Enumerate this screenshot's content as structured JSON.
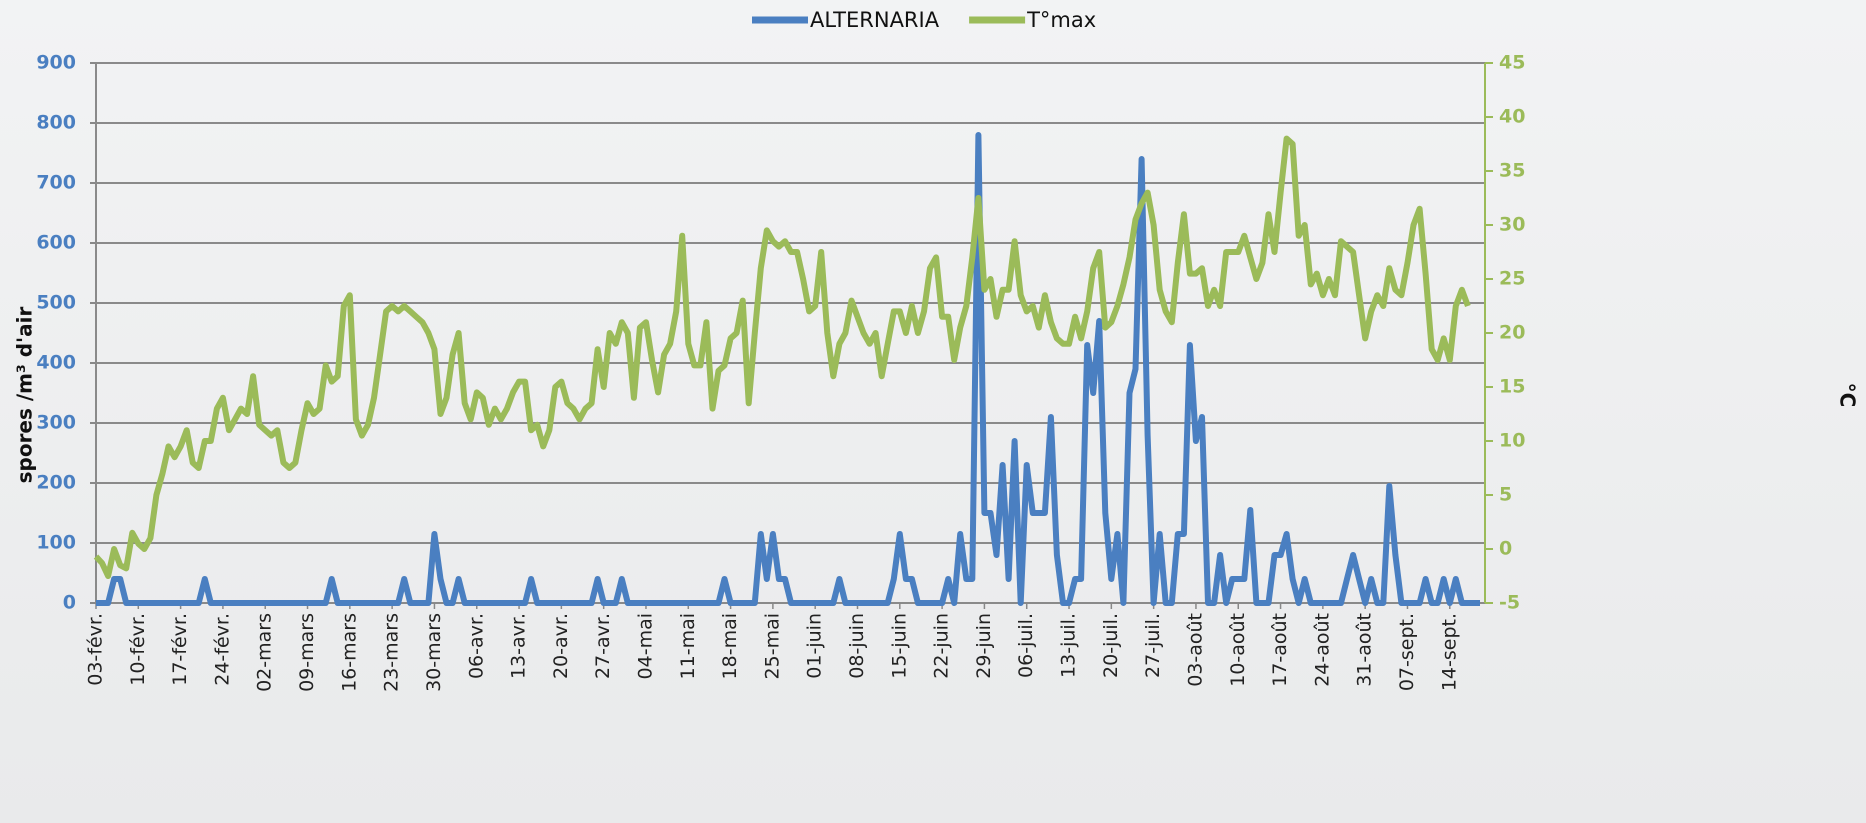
{
  "chart_data": {
    "type": "line",
    "y_label": "spores /m³ d'air",
    "y2_label": "°C",
    "categories": [
      "03-févr.",
      null,
      null,
      null,
      null,
      null,
      null,
      "10-févr.",
      null,
      null,
      null,
      null,
      null,
      null,
      "17-févr.",
      null,
      null,
      null,
      null,
      null,
      null,
      "24-févr.",
      null,
      null,
      null,
      null,
      null,
      null,
      "02-mars",
      null,
      null,
      null,
      null,
      null,
      null,
      "09-mars",
      null,
      null,
      null,
      null,
      null,
      null,
      "16-mars",
      null,
      null,
      null,
      null,
      null,
      null,
      "23-mars",
      null,
      null,
      null,
      null,
      null,
      null,
      "30-mars",
      null,
      null,
      null,
      null,
      null,
      null,
      "06-avr.",
      null,
      null,
      null,
      null,
      null,
      null,
      "13-avr.",
      null,
      null,
      null,
      null,
      null,
      null,
      "20-avr.",
      null,
      null,
      null,
      null,
      null,
      null,
      "27-avr.",
      null,
      null,
      null,
      null,
      null,
      null,
      "04-mai",
      null,
      null,
      null,
      null,
      null,
      null,
      "11-mai",
      null,
      null,
      null,
      null,
      null,
      null,
      "18-mai",
      null,
      null,
      null,
      null,
      null,
      null,
      "25-mai",
      null,
      null,
      null,
      null,
      null,
      null,
      "01-juin",
      null,
      null,
      null,
      null,
      null,
      null,
      "08-juin",
      null,
      null,
      null,
      null,
      null,
      null,
      "15-juin",
      null,
      null,
      null,
      null,
      null,
      null,
      "22-juin",
      null,
      null,
      null,
      null,
      null,
      null,
      "29-juin",
      null,
      null,
      null,
      null,
      null,
      null,
      "06-juil.",
      null,
      null,
      null,
      null,
      null,
      null,
      "13-juil.",
      null,
      null,
      null,
      null,
      null,
      null,
      "20-juil.",
      null,
      null,
      null,
      null,
      null,
      null,
      "27-juil.",
      null,
      null,
      null,
      null,
      null,
      null,
      "03-août",
      null,
      null,
      null,
      null,
      null,
      null,
      "10-août",
      null,
      null,
      null,
      null,
      null,
      null,
      "17-août",
      null,
      null,
      null,
      null,
      null,
      null,
      "24-août",
      null,
      null,
      null,
      null,
      null,
      null,
      "31-août",
      null,
      null,
      null,
      null,
      null,
      null,
      "07-sept.",
      null,
      null,
      null,
      null,
      null,
      null,
      "14-sept.",
      null,
      null,
      null,
      null,
      null
    ],
    "series": [
      {
        "name": "ALTERNARIA",
        "color": "#4a7fc1",
        "values": [
          0,
          0,
          0,
          40,
          40,
          0,
          0,
          0,
          0,
          0,
          0,
          0,
          0,
          0,
          0,
          0,
          0,
          0,
          40,
          0,
          0,
          0,
          0,
          0,
          0,
          0,
          0,
          0,
          0,
          0,
          0,
          0,
          0,
          0,
          0,
          0,
          0,
          0,
          0,
          40,
          0,
          0,
          0,
          0,
          0,
          0,
          0,
          0,
          0,
          0,
          0,
          40,
          0,
          0,
          0,
          0,
          115,
          40,
          0,
          0,
          40,
          0,
          0,
          0,
          0,
          0,
          0,
          0,
          0,
          0,
          0,
          0,
          40,
          0,
          0,
          0,
          0,
          0,
          0,
          0,
          0,
          0,
          0,
          40,
          0,
          0,
          0,
          40,
          0,
          0,
          0,
          0,
          0,
          0,
          0,
          0,
          0,
          0,
          0,
          0,
          0,
          0,
          0,
          0,
          40,
          0,
          0,
          0,
          0,
          0,
          115,
          40,
          115,
          40,
          40,
          0,
          0,
          0,
          0,
          0,
          0,
          0,
          0,
          40,
          0,
          0,
          0,
          0,
          0,
          0,
          0,
          0,
          40,
          115,
          40,
          40,
          0,
          0,
          0,
          0,
          0,
          40,
          0,
          115,
          40,
          40,
          780,
          150,
          150,
          80,
          230,
          40,
          270,
          0,
          230,
          150,
          150,
          150,
          310,
          80,
          0,
          0,
          40,
          40,
          430,
          350,
          470,
          150,
          40,
          115,
          0,
          350,
          390,
          740,
          280,
          0,
          115,
          0,
          0,
          115,
          115,
          430,
          270,
          310,
          0,
          0,
          80,
          0,
          40,
          40,
          40,
          155,
          0,
          0,
          0,
          80,
          80,
          115,
          40,
          0,
          40,
          0,
          0,
          0,
          0,
          0,
          0,
          40,
          80,
          40,
          0,
          40,
          0,
          0,
          195,
          80,
          0,
          0,
          0,
          0,
          40,
          0,
          0,
          40,
          0,
          40,
          0,
          0,
          0,
          0
        ]
      },
      {
        "name": "T°max",
        "color": "#9bbb59",
        "axis": "y2",
        "values": [
          -0.7,
          -1.3,
          -2.5,
          0,
          -1.5,
          -1.8,
          1.5,
          0.5,
          0,
          1,
          5,
          7,
          9.5,
          8.5,
          9.5,
          11,
          8,
          7.5,
          10,
          10,
          13,
          14,
          11,
          12,
          13,
          12.5,
          16,
          11.5,
          11,
          10.5,
          11,
          8,
          7.5,
          8,
          11,
          13.5,
          12.5,
          13,
          17,
          15.5,
          16,
          22.5,
          23.5,
          12,
          10.5,
          11.5,
          14,
          18,
          22,
          22.5,
          22,
          22.5,
          22,
          21.5,
          21,
          20,
          18.5,
          12.5,
          14,
          18,
          20,
          13.5,
          12,
          14.5,
          14,
          11.5,
          13,
          12,
          13,
          14.5,
          15.5,
          15.5,
          11,
          11.5,
          9.5,
          11,
          15,
          15.5,
          13.5,
          13,
          12,
          13,
          13.5,
          18.5,
          15,
          20,
          19,
          21,
          20,
          14,
          20.5,
          21,
          17.5,
          14.5,
          18,
          19,
          22,
          29,
          19,
          17,
          17,
          21,
          13,
          16.5,
          17,
          19.5,
          20,
          23,
          13.5,
          20,
          26,
          29.5,
          28.5,
          28,
          28.5,
          27.5,
          27.5,
          25,
          22,
          22.5,
          27.5,
          20,
          16,
          19,
          20,
          23,
          21.5,
          20,
          19,
          20,
          16,
          19,
          22,
          22,
          20,
          22.5,
          20,
          22,
          26,
          27,
          21.5,
          21.5,
          17.5,
          20.5,
          22.5,
          27,
          32.5,
          24,
          25,
          21.5,
          24,
          24,
          28.5,
          23.5,
          22,
          22.5,
          20.5,
          23.5,
          21,
          19.5,
          19,
          19,
          21.5,
          19.5,
          22,
          26,
          27.5,
          20.5,
          21,
          22.5,
          24.5,
          27,
          30.5,
          32,
          33,
          30,
          24,
          22,
          21,
          26.5,
          31,
          25.5,
          25.5,
          26,
          22.5,
          24,
          22.5,
          27.5,
          27.5,
          27.5,
          29,
          27,
          25,
          26.5,
          31,
          27.5,
          33,
          38,
          37.5,
          29,
          30,
          24.5,
          25.5,
          23.5,
          25,
          23.5,
          28.5,
          28,
          27.5,
          23.5,
          19.5,
          22,
          23.5,
          22.5,
          26,
          24,
          23.5,
          26.5,
          30,
          31.5,
          25.5,
          18.5,
          17.5,
          19.5,
          17.5,
          22.5,
          24,
          22.5,
          null,
          null
        ]
      }
    ],
    "ylim": [
      0,
      900
    ],
    "yticks": [
      0,
      100,
      200,
      300,
      400,
      500,
      600,
      700,
      800,
      900
    ],
    "y2lim": [
      -5,
      45
    ],
    "y2ticks": [
      -5,
      0,
      5,
      10,
      15,
      20,
      25,
      30,
      35,
      40,
      45
    ],
    "grid": true,
    "legend": "top"
  }
}
